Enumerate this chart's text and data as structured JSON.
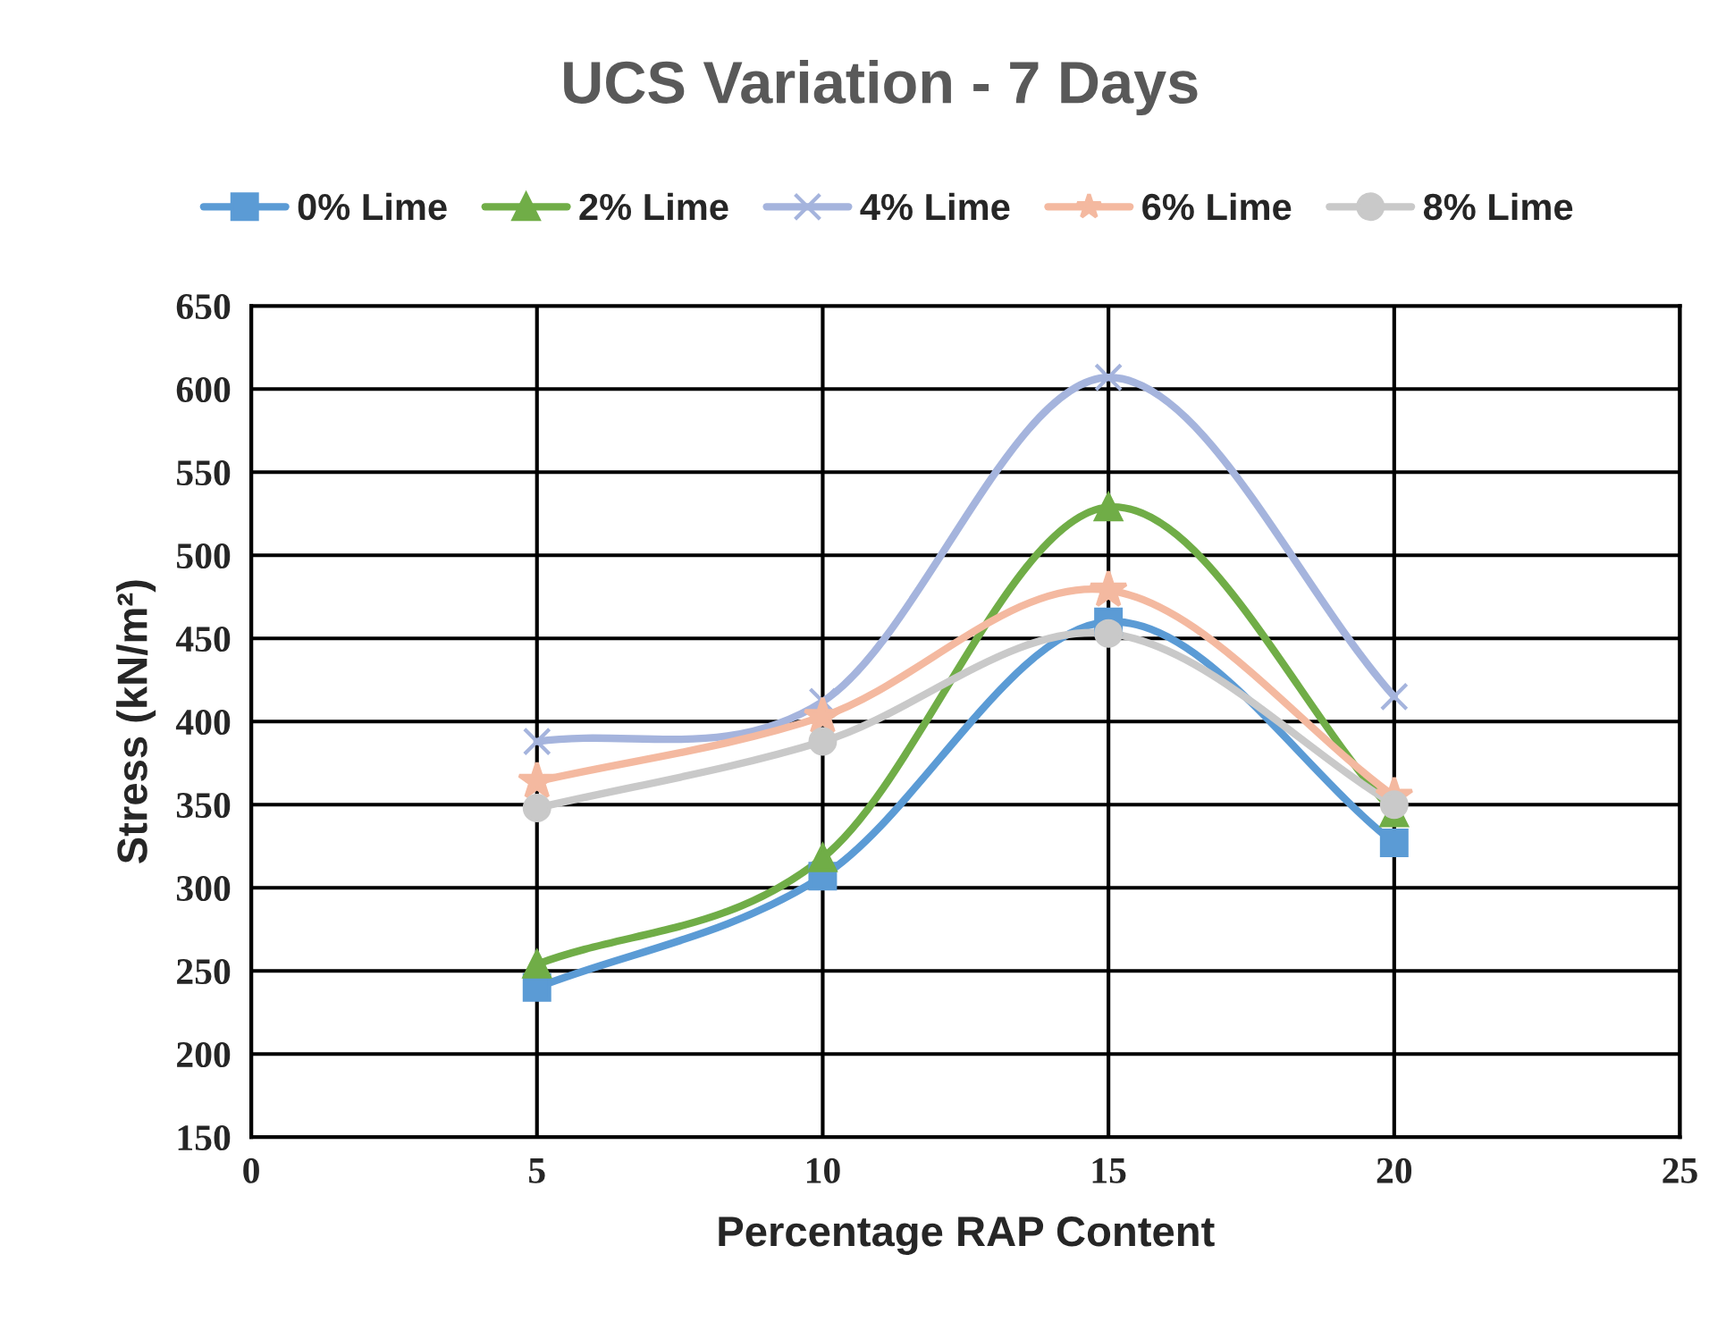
{
  "chart_data": {
    "type": "line",
    "title": "UCS Variation - 7 Days",
    "xlabel": "Percentage RAP Content",
    "ylabel": "Stress (kN/m²)",
    "x": [
      5,
      10,
      15,
      20
    ],
    "series": [
      {
        "name": "0% Lime",
        "color": "#5b9bd5",
        "marker": "square",
        "values": [
          240,
          307,
          460,
          327
        ]
      },
      {
        "name": "2% Lime",
        "color": "#70ad47",
        "marker": "triangle",
        "values": [
          254,
          318,
          529,
          345
        ]
      },
      {
        "name": "4% Lime",
        "color": "#a5b4dd",
        "marker": "cross",
        "values": [
          388,
          412,
          607,
          415
        ]
      },
      {
        "name": "6% Lime",
        "color": "#f4b9a0",
        "marker": "star",
        "values": [
          364,
          403,
          479,
          355
        ]
      },
      {
        "name": "8% Lime",
        "color": "#c9c9c9",
        "marker": "circle",
        "values": [
          348,
          388,
          453,
          350
        ]
      }
    ],
    "xlim": [
      0,
      25
    ],
    "xticks": [
      0,
      5,
      10,
      15,
      20,
      25
    ],
    "ylim": [
      150,
      650
    ],
    "yticks": [
      150,
      200,
      250,
      300,
      350,
      400,
      450,
      500,
      550,
      600,
      650
    ],
    "grid": true,
    "legend": "top",
    "line_style": "solid"
  }
}
